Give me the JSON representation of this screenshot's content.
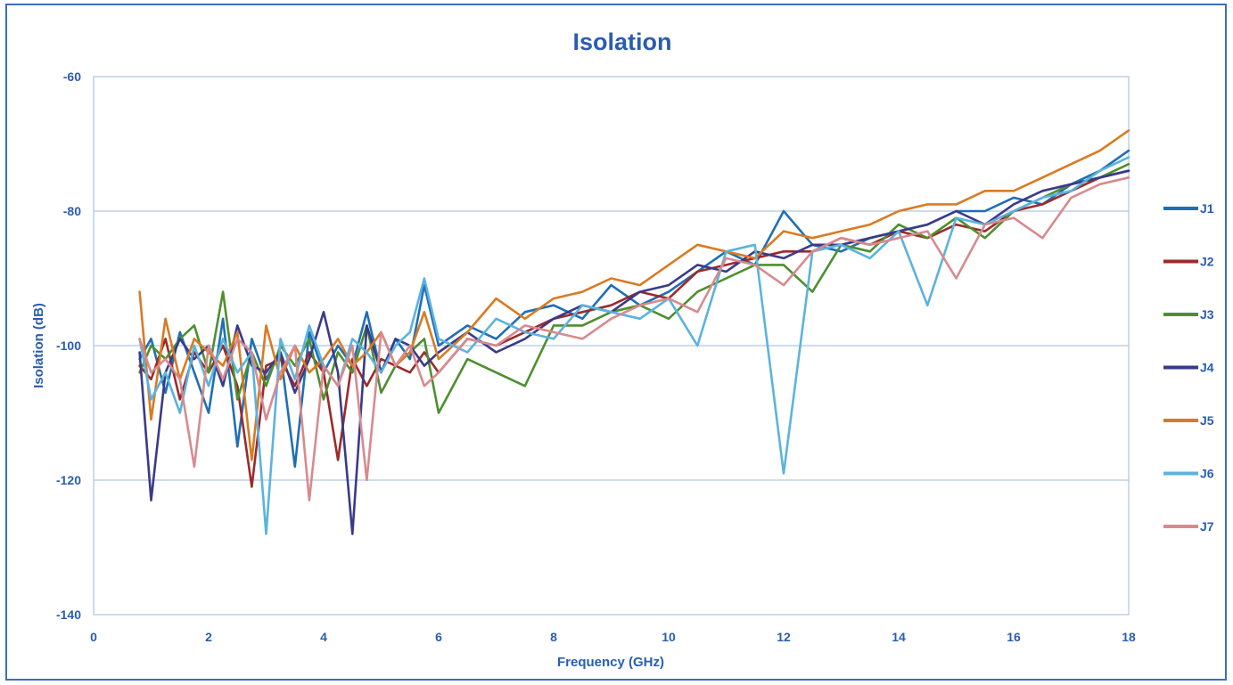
{
  "chart_data": {
    "type": "line",
    "title": "Isolation",
    "xlabel": "Frequency (GHz)",
    "ylabel": "Isolation (dB)",
    "xlim": [
      0,
      18
    ],
    "ylim": [
      -140,
      -60
    ],
    "x_ticks": [
      0,
      2,
      4,
      6,
      8,
      10,
      12,
      14,
      16,
      18
    ],
    "y_ticks": [
      -60,
      -80,
      -100,
      -120,
      -140
    ],
    "grid": "horizontal",
    "legend_position": "right",
    "x": [
      0.8,
      1,
      1.25,
      1.5,
      1.75,
      2,
      2.25,
      2.5,
      2.75,
      3,
      3.25,
      3.5,
      3.75,
      4,
      4.25,
      4.5,
      4.75,
      5,
      5.25,
      5.5,
      5.75,
      6,
      6.5,
      7,
      7.5,
      8,
      8.5,
      9,
      9.5,
      10,
      10.5,
      11,
      11.5,
      12,
      12.5,
      13,
      13.5,
      14,
      14.5,
      15,
      15.5,
      16,
      16.5,
      17,
      17.5,
      18
    ],
    "series": [
      {
        "name": "J1",
        "color": "#1f6fb5",
        "values": [
          -102,
          -99,
          -107,
          -98,
          -104,
          -110,
          -96,
          -115,
          -99,
          -105,
          -101,
          -118,
          -98,
          -104,
          -100,
          -103,
          -95,
          -104,
          -99,
          -102,
          -91,
          -100,
          -97,
          -99,
          -95,
          -94,
          -96,
          -91,
          -94,
          -92,
          -89,
          -86,
          -88,
          -80,
          -85,
          -86,
          -84,
          -83,
          -82,
          -80,
          -80,
          -78,
          -79,
          -76,
          -74,
          -71
        ]
      },
      {
        "name": "J2",
        "color": "#9b2b2b",
        "values": [
          -103,
          -105,
          -99,
          -108,
          -101,
          -104,
          -100,
          -106,
          -121,
          -103,
          -102,
          -106,
          -101,
          -104,
          -117,
          -102,
          -106,
          -102,
          -103,
          -104,
          -101,
          -104,
          -99,
          -100,
          -98,
          -96,
          -95,
          -94,
          -92,
          -93,
          -89,
          -88,
          -87,
          -86,
          -86,
          -84,
          -85,
          -83,
          -84,
          -82,
          -83,
          -80,
          -79,
          -77,
          -75,
          -74
        ]
      },
      {
        "name": "J3",
        "color": "#4e8f2f",
        "values": [
          -104,
          -100,
          -102,
          -99,
          -97,
          -104,
          -92,
          -108,
          -101,
          -106,
          -100,
          -103,
          -99,
          -108,
          -101,
          -104,
          -97,
          -107,
          -103,
          -101,
          -99,
          -110,
          -102,
          -104,
          -106,
          -97,
          -97,
          -95,
          -94,
          -96,
          -92,
          -90,
          -88,
          -88,
          -92,
          -85,
          -86,
          -82,
          -84,
          -81,
          -84,
          -80,
          -78,
          -76,
          -75,
          -73
        ]
      },
      {
        "name": "J4",
        "color": "#3a3a8a",
        "values": [
          -101,
          -123,
          -104,
          -99,
          -102,
          -100,
          -106,
          -97,
          -103,
          -104,
          -101,
          -107,
          -102,
          -95,
          -104,
          -128,
          -97,
          -104,
          -99,
          -100,
          -103,
          -101,
          -98,
          -101,
          -99,
          -96,
          -94,
          -95,
          -92,
          -91,
          -88,
          -89,
          -86,
          -87,
          -85,
          -85,
          -84,
          -83,
          -82,
          -80,
          -82,
          -79,
          -77,
          -76,
          -75,
          -74
        ]
      },
      {
        "name": "J5",
        "color": "#d97b22",
        "values": [
          -92,
          -111,
          -96,
          -105,
          -99,
          -101,
          -103,
          -98,
          -117,
          -97,
          -105,
          -100,
          -104,
          -102,
          -99,
          -103,
          -101,
          -98,
          -103,
          -101,
          -95,
          -102,
          -98,
          -93,
          -96,
          -93,
          -92,
          -90,
          -91,
          -88,
          -85,
          -86,
          -87,
          -83,
          -84,
          -83,
          -82,
          -80,
          -79,
          -79,
          -77,
          -77,
          -75,
          -73,
          -71,
          -68
        ]
      },
      {
        "name": "J6",
        "color": "#5bb3df",
        "values": [
          -99,
          -108,
          -104,
          -110,
          -100,
          -106,
          -99,
          -104,
          -101,
          -128,
          -99,
          -105,
          -97,
          -103,
          -106,
          -99,
          -101,
          -104,
          -100,
          -98,
          -90,
          -99,
          -101,
          -96,
          -98,
          -99,
          -94,
          -95,
          -96,
          -93,
          -100,
          -86,
          -85,
          -119,
          -86,
          -85,
          -87,
          -83,
          -94,
          -81,
          -82,
          -80,
          -78,
          -77,
          -74,
          -72
        ]
      },
      {
        "name": "J7",
        "color": "#d88a8f",
        "values": [
          -99,
          -104,
          -102,
          -105,
          -118,
          -100,
          -105,
          -99,
          -101,
          -111,
          -104,
          -100,
          -123,
          -103,
          -106,
          -100,
          -120,
          -98,
          -103,
          -100,
          -106,
          -104,
          -99,
          -100,
          -97,
          -98,
          -99,
          -96,
          -94,
          -93,
          -95,
          -87,
          -88,
          -91,
          -86,
          -84,
          -85,
          -84,
          -83,
          -90,
          -82,
          -81,
          -84,
          -78,
          -76,
          -75
        ]
      }
    ]
  }
}
